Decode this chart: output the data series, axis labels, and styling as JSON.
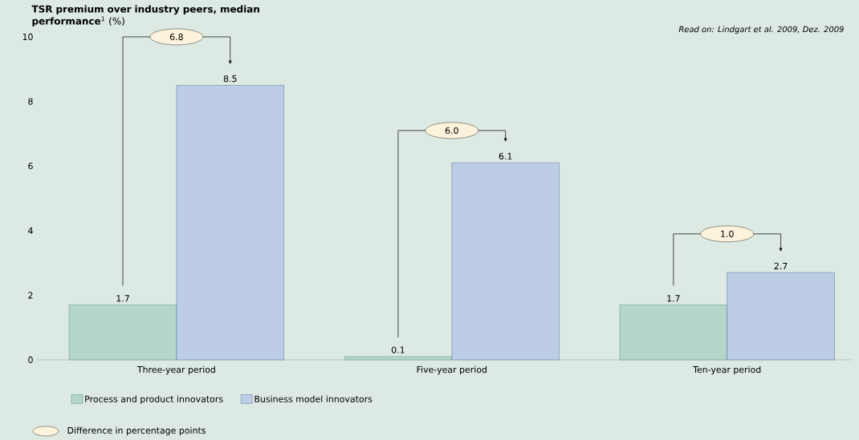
{
  "chart_data": {
    "type": "bar",
    "title": "**TSR premium over industry peers, median performance**$^{1}$ (%)",
    "categories": [
      "Three-year period",
      "Five-year period",
      "Ten-year period"
    ],
    "series": [
      {
        "name": "Process and product innovators",
        "color": "#b5d6c9",
        "values": [
          1.7,
          0.1,
          1.7
        ]
      },
      {
        "name": "Business model innovators",
        "color": "#bdcde6",
        "values": [
          8.5,
          6.1,
          2.7
        ]
      }
    ],
    "ylim": [
      0,
      10
    ],
    "yticks": [
      0,
      2,
      4,
      6,
      8,
      10
    ],
    "data_labels": true,
    "legend": "bottom",
    "grid": false,
    "annotations": [
      "Read on: Lindgart et al. 2009, Dez. 2009",
      "Difference in percentage points",
      "6.8",
      "6.0",
      "1.0"
    ]
  }
}
